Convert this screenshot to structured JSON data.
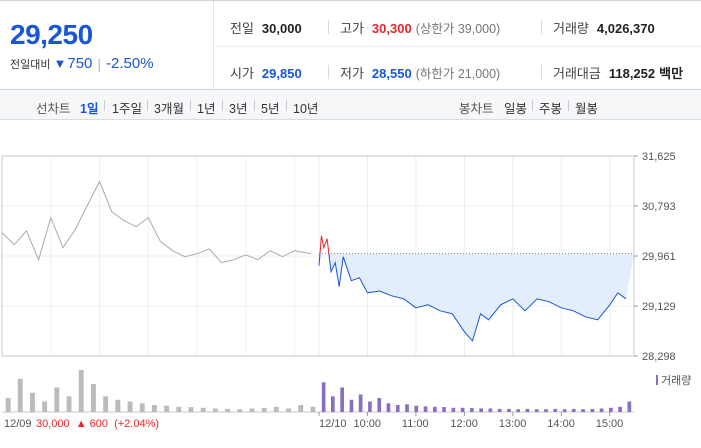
{
  "quote": {
    "price": "29,250",
    "change_label": "전일대비",
    "change_arrow": "▼",
    "change_value": "750",
    "change_percent": "-2.50%",
    "prev_close_label": "전일",
    "prev_close": "30,000",
    "open_label": "시가",
    "open": "29,850",
    "high_label": "고가",
    "high": "30,300",
    "upper_limit": "(상한가 39,000)",
    "low_label": "저가",
    "low": "28,550",
    "lower_limit": "(하한가 21,000)",
    "volume_label": "거래량",
    "volume": "4,026,370",
    "amount_label": "거래대금",
    "amount": "118,252",
    "amount_unit": "백만"
  },
  "period_tabs": {
    "line_label": "선차트",
    "line_items": [
      "1일",
      "1주일",
      "3개월",
      "1년",
      "3년",
      "5년",
      "10년"
    ],
    "active": "1일",
    "candle_label": "봉차트",
    "candle_items": [
      "일봉",
      "주봉",
      "월봉"
    ]
  },
  "colors": {
    "up": "#e8262b",
    "down": "#1956d9",
    "prev": "#aaaaaa",
    "fill": "#e3edfb"
  },
  "chart_data": {
    "type": "line",
    "y_ticks": [
      "31,625",
      "30,793",
      "29,961",
      "29,129",
      "28,298"
    ],
    "ylim": [
      28298,
      31625
    ],
    "reference_price": 30000,
    "x_ticks": [
      "12/09",
      "12/10",
      "10:00",
      "11:00",
      "12:00",
      "13:00",
      "14:00",
      "15:00"
    ],
    "legend": "거래량",
    "prev_day_note": {
      "date": "12/09",
      "close": "30,000",
      "arrow": "▲",
      "change": "600",
      "percent": "(+2.04%)"
    },
    "series": [
      {
        "day": "12/09",
        "x": [
          "09:00",
          "09:15",
          "09:30",
          "09:45",
          "10:00",
          "10:15",
          "10:30",
          "10:45",
          "11:00",
          "11:15",
          "11:30",
          "11:45",
          "12:00",
          "12:15",
          "12:30",
          "12:45",
          "13:00",
          "13:15",
          "13:30",
          "13:45",
          "14:00",
          "14:15",
          "14:30",
          "14:45",
          "15:00",
          "15:20"
        ],
        "values": [
          30350,
          30150,
          30380,
          29900,
          30600,
          30100,
          30400,
          30800,
          31200,
          30700,
          30550,
          30450,
          30600,
          30200,
          30050,
          29950,
          30000,
          30080,
          29850,
          29900,
          29980,
          29900,
          30050,
          29950,
          30050,
          30000
        ]
      },
      {
        "day": "12/10",
        "x": [
          "09:00",
          "09:03",
          "09:06",
          "09:10",
          "09:15",
          "09:20",
          "09:25",
          "09:30",
          "09:40",
          "09:50",
          "10:00",
          "10:15",
          "10:30",
          "10:45",
          "11:00",
          "11:15",
          "11:30",
          "11:45",
          "12:00",
          "12:10",
          "12:20",
          "12:30",
          "12:45",
          "13:00",
          "13:15",
          "13:30",
          "13:45",
          "14:00",
          "14:15",
          "14:30",
          "14:45",
          "15:00",
          "15:10",
          "15:20"
        ],
        "values": [
          29800,
          30300,
          30100,
          30250,
          29700,
          29850,
          29450,
          29950,
          29550,
          29600,
          29350,
          29380,
          29300,
          29250,
          29100,
          29150,
          29050,
          29000,
          28700,
          28550,
          29000,
          28900,
          29150,
          29250,
          29050,
          29250,
          29200,
          29100,
          29050,
          28950,
          28900,
          29150,
          29350,
          29250
        ]
      }
    ],
    "volume": {
      "day1": [
        40,
        95,
        55,
        30,
        70,
        45,
        120,
        80,
        45,
        35,
        30,
        25,
        20,
        18,
        15,
        14,
        12,
        10,
        9,
        8,
        10,
        12,
        15,
        10,
        20,
        15
      ],
      "day2": [
        85,
        45,
        70,
        35,
        50,
        30,
        40,
        25,
        20,
        22,
        18,
        16,
        15,
        14,
        12,
        12,
        11,
        10,
        10,
        9,
        9,
        8,
        9,
        8,
        8,
        9,
        8,
        9,
        8,
        9,
        10,
        12,
        15,
        30
      ]
    }
  }
}
